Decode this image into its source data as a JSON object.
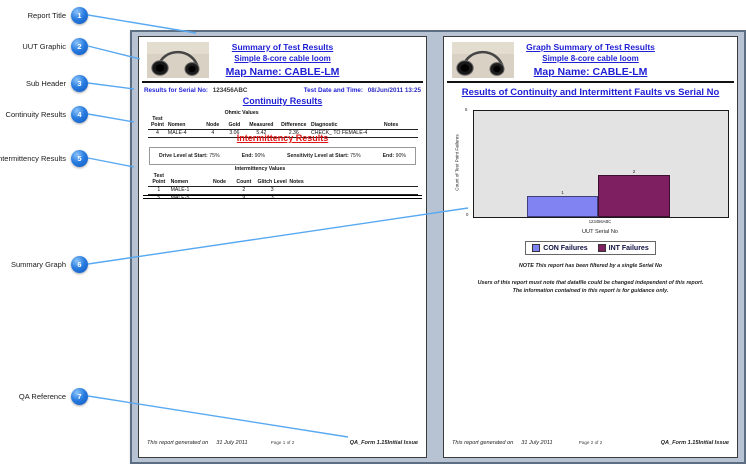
{
  "callouts": {
    "items": [
      {
        "num": "1",
        "label": "Report Title"
      },
      {
        "num": "2",
        "label": "UUT Graphic"
      },
      {
        "num": "3",
        "label": "Sub Header"
      },
      {
        "num": "4",
        "label": "Continuity Results"
      },
      {
        "num": "5",
        "label": "Intermittency Results"
      },
      {
        "num": "6",
        "label": "Summary Graph"
      },
      {
        "num": "7",
        "label": "QA Reference"
      }
    ]
  },
  "left_page": {
    "title": "Summary of Test Results",
    "subtitle": "Simple 8-core cable loom",
    "map_name": "Map Name: CABLE-LM",
    "serial_label": "Results for Serial No:",
    "serial_value": "123456ABC",
    "datetime_label": "Test Date and Time:",
    "datetime_value": "08/Jun/2011  13:25",
    "continuity": {
      "title": "Continuity Results",
      "group_header": "Ohmic Values",
      "headers": [
        "Test Point",
        "Nomen",
        "Node",
        "Gold",
        "Measured",
        "Difference",
        "Diagnostic",
        "Notes"
      ],
      "rows": [
        {
          "point": "4",
          "nomen": "MALE-4",
          "node": "4",
          "gold": "3.06",
          "measured": "5.42",
          "difference": "2.36",
          "diagnostic": "CHECK_ TO FEMALE-4",
          "notes": ""
        }
      ]
    },
    "intermittency": {
      "title": "Intermittency Results",
      "drive_start_label": "Drive Level at Start:",
      "drive_start": "75%",
      "drive_end_label": "End:",
      "drive_end": "90%",
      "sens_start_label": "Sensitivity Level at Start:",
      "sens_start": "75%",
      "sens_end_label": "End:",
      "sens_end": "90%",
      "group_header": "Intermittency Values",
      "headers": [
        "Test Point",
        "Nomen",
        "Node",
        "Count",
        "Glitch Level",
        "Notes"
      ],
      "rows": [
        {
          "point": "1",
          "nomen": "MALE-1",
          "node": "",
          "count": "2",
          "glitch": "3",
          "notes": ""
        },
        {
          "point": "5",
          "nomen": "MALE-5",
          "node": "",
          "count": "9",
          "glitch": "3",
          "notes": ""
        }
      ]
    },
    "footer": {
      "generated_label": "This report generated on",
      "generated_date": "31 July 2011",
      "page": "Page 1 of 2",
      "qa_ref": "QA_Form 1.15Initial Issue"
    }
  },
  "right_page": {
    "title": "Graph Summary of Test Results",
    "subtitle": "Simple 8-core cable loom",
    "map_name": "Map Name: CABLE-LM",
    "note": "NOTE This report has been filtered by a single Serial No",
    "disclaimer_line1": "Users of this report must note that datafile could be changed independent of this report.",
    "disclaimer_line2": "The information contained in this report is for guidance only.",
    "footer": {
      "generated_label": "This report generated on",
      "generated_date": "31 July 2011",
      "page": "Page 2 of 2",
      "qa_ref": "QA_Form 1.15Initial Issue"
    }
  },
  "chart_data": {
    "type": "bar",
    "title": "Results of Continuity and Intermittent Faults vs Serial No",
    "categories": [
      "123456ABC"
    ],
    "series": [
      {
        "name": "CON Failures",
        "values": [
          1
        ],
        "color": "#8283f2"
      },
      {
        "name": "INT Failures",
        "values": [
          2
        ],
        "color": "#7e1f62"
      }
    ],
    "xlabel": "UUT Serial No",
    "ylabel": "Count of Test Point Failures",
    "ylim": [
      0,
      5
    ],
    "grid": false,
    "plot_background": "#e3e3e3",
    "legend_position": "bottom",
    "bar_value_labels": true
  },
  "colors": {
    "accent_blue_text": "#1f1fd4",
    "red_heading": "#e11414",
    "callout_line": "#58a9f2",
    "frame_fill": "#b7c3d3",
    "frame_border": "#5d6d82"
  }
}
